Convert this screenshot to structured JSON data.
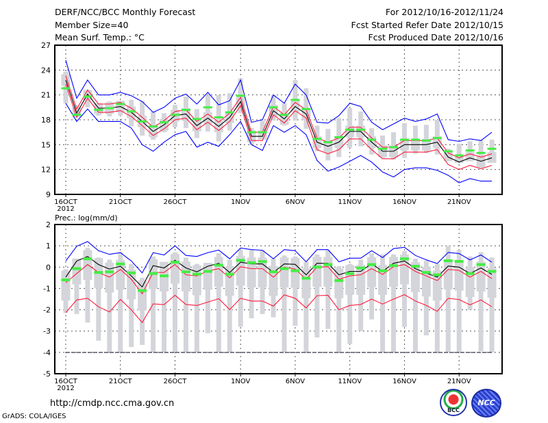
{
  "header": {
    "title": "DERF/NCC/BCC Monthly Forecast",
    "member_size": "Member Size=40",
    "variable": "Mean Surf. Temp.: °C",
    "period": "For 2012/10/16-2012/11/24",
    "started": "Fcst Started Refer Date 2012/10/15",
    "produced": "Fcst Produced Date 2012/10/16"
  },
  "footer": {
    "url": "http://cmdp.ncc.cma.gov.cn",
    "credit": "GrADS: COLA/IGES",
    "logo_left": "BCC",
    "logo_right": "NCC"
  },
  "colors": {
    "mean": "#000000",
    "ci": "#ff1a3c",
    "envelope": "#0000ff",
    "obs": "#44ee44",
    "spread": "#d4d5da",
    "grid": "#555555"
  },
  "chart_data": [
    {
      "type": "line",
      "title": "Mean Surf. Temp.: °C",
      "xlabel": "",
      "ylabel": "",
      "ylim": [
        9,
        27
      ],
      "yticks": [
        9,
        12,
        15,
        18,
        21,
        24,
        27
      ],
      "grid": true,
      "x_tick_labels": [
        {
          "day": 0,
          "label": "16OCT",
          "sub": "2012"
        },
        {
          "day": 5,
          "label": "21OCT"
        },
        {
          "day": 10,
          "label": "26OCT"
        },
        {
          "day": 16,
          "label": "1NOV"
        },
        {
          "day": 21,
          "label": "6NOV"
        },
        {
          "day": 26,
          "label": "11NOV"
        },
        {
          "day": 31,
          "label": "16NOV"
        },
        {
          "day": 36,
          "label": "21NOV"
        }
      ],
      "days": 40,
      "box_offsets": [
        -0.7,
        0.7
      ],
      "series": [
        {
          "name": "ensemble mean",
          "values": [
            22.8,
            18.8,
            21.1,
            19.4,
            19.4,
            19.6,
            18.9,
            17.8,
            16.6,
            17.4,
            18.5,
            18.7,
            17.3,
            18.2,
            17.2,
            18.3,
            20.2,
            16.0,
            16.0,
            19.1,
            18.1,
            19.6,
            18.7,
            15.3,
            14.8,
            15.3,
            16.6,
            16.6,
            15.3,
            14.2,
            14.2,
            15.0,
            15.0,
            15.0,
            15.3,
            13.5,
            12.9,
            13.4,
            13.0,
            13.4
          ]
        },
        {
          "name": "upper confidence",
          "values": [
            23.3,
            19.3,
            21.6,
            19.9,
            19.9,
            20.1,
            19.4,
            18.3,
            17.1,
            17.9,
            19.0,
            19.2,
            17.8,
            18.7,
            17.7,
            18.8,
            20.7,
            16.5,
            16.5,
            19.6,
            18.6,
            20.1,
            19.2,
            15.8,
            15.3,
            15.8,
            17.1,
            17.1,
            15.8,
            14.7,
            14.7,
            15.5,
            15.5,
            15.5,
            15.8,
            14.0,
            13.4,
            13.9,
            13.5,
            13.9
          ]
        },
        {
          "name": "lower confidence",
          "values": [
            22.3,
            18.3,
            20.6,
            18.9,
            18.9,
            19.1,
            18.4,
            17.3,
            16.1,
            16.9,
            18.0,
            18.2,
            16.8,
            17.7,
            16.7,
            17.8,
            19.7,
            15.5,
            15.5,
            18.6,
            17.6,
            19.1,
            18.2,
            14.4,
            13.9,
            14.4,
            15.7,
            15.7,
            14.4,
            13.3,
            13.3,
            14.1,
            14.1,
            14.1,
            14.4,
            12.6,
            12.0,
            12.5,
            12.1,
            12.5
          ]
        },
        {
          "name": "ensemble max",
          "values": [
            25.2,
            20.6,
            22.8,
            21.0,
            21.0,
            21.3,
            20.9,
            20.2,
            18.9,
            19.5,
            20.6,
            21.1,
            19.9,
            21.3,
            19.8,
            20.3,
            22.8,
            17.7,
            18.0,
            21.0,
            20.0,
            22.3,
            21.0,
            17.7,
            17.6,
            18.5,
            20.0,
            19.6,
            17.7,
            16.8,
            17.5,
            18.2,
            17.8,
            18.1,
            18.7,
            15.6,
            15.4,
            15.7,
            15.5,
            16.5
          ]
        },
        {
          "name": "ensemble min",
          "values": [
            20.0,
            17.8,
            19.3,
            17.8,
            17.8,
            17.8,
            17.0,
            15.0,
            14.2,
            15.3,
            16.2,
            16.6,
            14.7,
            15.3,
            14.8,
            16.2,
            17.8,
            15.0,
            14.3,
            17.3,
            16.5,
            17.3,
            16.2,
            13.1,
            11.8,
            12.3,
            13.0,
            13.7,
            12.9,
            11.7,
            11.1,
            12.0,
            12.2,
            12.2,
            11.9,
            11.3,
            10.4,
            10.9,
            10.6,
            10.6
          ]
        },
        {
          "name": "observed",
          "values": [
            21.8,
            18.6,
            20.8,
            19.2,
            19.4,
            19.9,
            19.0,
            17.8,
            17.2,
            17.7,
            18.6,
            19.2,
            18.1,
            19.5,
            18.3,
            18.9,
            20.9,
            16.5,
            16.5,
            19.5,
            18.6,
            20.4,
            19.3,
            15.7,
            15.3,
            15.9,
            16.8,
            16.8,
            15.6,
            14.5,
            14.7,
            15.6,
            15.6,
            15.5,
            15.8,
            14.2,
            13.7,
            14.3,
            14.0,
            14.5
          ]
        },
        {
          "name": "spread high",
          "values": [
            23.8,
            19.8,
            21.6,
            20.0,
            20.2,
            20.3,
            20.4,
            20.3,
            19.0,
            18.8,
            19.8,
            20.8,
            19.3,
            21.0,
            21.0,
            21.2,
            23.0,
            17.0,
            17.9,
            21.0,
            20.0,
            22.8,
            21.8,
            17.3,
            16.9,
            18.2,
            19.4,
            19.0,
            17.0,
            16.1,
            16.5,
            17.6,
            17.3,
            17.4,
            18.0,
            14.5,
            15.1,
            15.4,
            15.6,
            15.6
          ]
        },
        {
          "name": "spread low",
          "values": [
            20.0,
            18.3,
            19.5,
            18.5,
            18.4,
            18.5,
            17.2,
            16.1,
            15.6,
            16.5,
            17.1,
            17.0,
            15.8,
            16.6,
            15.4,
            16.7,
            18.8,
            15.0,
            15.6,
            17.9,
            17.3,
            17.9,
            16.9,
            14.2,
            13.1,
            13.5,
            14.6,
            14.8,
            13.8,
            13.4,
            13.2,
            13.4,
            13.9,
            14.0,
            13.8,
            13.0,
            12.8,
            13.0,
            12.2,
            12.8
          ]
        }
      ]
    },
    {
      "type": "line",
      "title": "Prec.: log(mm/d)",
      "xlabel": "",
      "ylabel": "",
      "ylim": [
        -5,
        2
      ],
      "yticks": [
        -5,
        -4,
        -3,
        -2,
        -1,
        0,
        1,
        2
      ],
      "grid": true,
      "x_tick_labels": [
        {
          "day": 0,
          "label": "16OCT",
          "sub": "2012"
        },
        {
          "day": 5,
          "label": "21OCT"
        },
        {
          "day": 10,
          "label": "26OCT"
        },
        {
          "day": 16,
          "label": "1NOV"
        },
        {
          "day": 21,
          "label": "6NOV"
        },
        {
          "day": 26,
          "label": "11NOV"
        },
        {
          "day": 31,
          "label": "16NOV"
        },
        {
          "day": 36,
          "label": "21NOV"
        }
      ],
      "days": 40,
      "box_offsets": [
        -1.1,
        0.3
      ],
      "series": [
        {
          "name": "ensemble mean",
          "values": [
            -0.47,
            0.29,
            0.5,
            0.12,
            -0.09,
            0.04,
            -0.41,
            -0.93,
            0.07,
            -0.04,
            0.32,
            -0.04,
            -0.22,
            0.04,
            0.18,
            -0.25,
            0.23,
            0.15,
            0.15,
            -0.25,
            0.15,
            0.13,
            -0.36,
            0.18,
            0.18,
            -0.36,
            -0.2,
            -0.2,
            0.16,
            -0.2,
            0.18,
            0.29,
            -0.07,
            -0.28,
            -0.47,
            0.05,
            0,
            -0.3,
            -0.04,
            -0.34
          ]
        },
        {
          "name": "upper confidence",
          "values": [
            -0.73,
            -0.3,
            0.12,
            -0.25,
            -0.47,
            -0.11,
            -0.57,
            -1.25,
            -0.25,
            -0.25,
            0.12,
            -0.36,
            -0.41,
            -0.18,
            -0.07,
            -0.5,
            0.02,
            -0.07,
            -0.07,
            -0.47,
            0,
            -0.09,
            -0.57,
            0,
            0.02,
            -0.57,
            -0.41,
            -0.36,
            -0.07,
            -0.34,
            0.02,
            0.12,
            -0.2,
            -0.41,
            -0.63,
            -0.11,
            -0.15,
            -0.47,
            -0.2,
            -0.54
          ]
        },
        {
          "name": "lower confidence",
          "values": [
            -2.13,
            -1.54,
            -1.46,
            -1.86,
            -2.1,
            -1.52,
            -2.0,
            -2.6,
            -1.72,
            -1.76,
            -1.32,
            -1.75,
            -1.8,
            -1.64,
            -1.48,
            -1.99,
            -1.46,
            -1.59,
            -1.59,
            -1.83,
            -1.3,
            -1.46,
            -1.91,
            -1.34,
            -1.32,
            -2.0,
            -1.8,
            -1.75,
            -1.5,
            -1.73,
            -1.5,
            -1.29,
            -1.59,
            -1.8,
            -2.07,
            -1.46,
            -1.52,
            -1.77,
            -1.54,
            -1.86
          ]
        },
        {
          "name": "ensemble max",
          "values": [
            0.29,
            0.98,
            1.2,
            0.77,
            0.6,
            0.68,
            0.29,
            -0.27,
            0.68,
            0.57,
            1.0,
            0.55,
            0.5,
            0.68,
            0.8,
            0.39,
            0.9,
            0.82,
            0.79,
            0.39,
            0.82,
            0.77,
            0.25,
            0.82,
            0.82,
            0.25,
            0.42,
            0.42,
            0.77,
            0.45,
            0.87,
            0.93,
            0.55,
            0.34,
            0.17,
            0.69,
            0.64,
            0.34,
            0.57,
            0.23
          ]
        },
        {
          "name": "ensemble min",
          "values": [
            -4,
            -4,
            -4,
            -4,
            -4,
            -4,
            -4,
            -4,
            -4,
            -4,
            -4,
            -4,
            -4,
            -4,
            -4,
            -4,
            -4,
            -4,
            -4,
            -4,
            -4,
            -4,
            -4,
            -4,
            -4,
            -4,
            -4,
            -4,
            -4,
            -4,
            -4,
            -4,
            -4,
            -4,
            -4,
            -4,
            -4,
            -4,
            -4,
            -4
          ]
        },
        {
          "name": "observed",
          "values": [
            -0.6,
            -0.07,
            0.39,
            -0.25,
            -0.22,
            0.15,
            -0.27,
            -1.1,
            -0.3,
            -0.41,
            0.23,
            -0.22,
            -0.33,
            -0.2,
            0.09,
            -0.33,
            0.32,
            0.21,
            0.26,
            -0.22,
            -0.07,
            -0.17,
            -0.52,
            0,
            0.12,
            -0.63,
            -0.3,
            -0.04,
            0.12,
            -0.17,
            0.07,
            0.39,
            0.04,
            -0.25,
            -0.36,
            0.3,
            0.27,
            -0.3,
            0.12,
            -0.2
          ]
        },
        {
          "name": "spread high",
          "values": [
            -0.1,
            0.4,
            0.9,
            0.45,
            0.35,
            0.7,
            0.15,
            -0.5,
            0.5,
            0.25,
            0.7,
            0.45,
            0.15,
            0.2,
            0.65,
            0.35,
            0.8,
            0.8,
            0.8,
            0.4,
            0.55,
            0.5,
            0.25,
            0.6,
            0.8,
            0.05,
            0.15,
            0.35,
            0.65,
            0.6,
            0.6,
            0.75,
            0.4,
            0.3,
            0.15,
            1.0,
            0.8,
            0.5,
            0.7,
            0.45
          ]
        },
        {
          "name": "spread low",
          "values": [
            -2.15,
            -2.2,
            -2.6,
            -3.45,
            -4,
            -4,
            -3.75,
            -3.65,
            -4,
            -4,
            -4,
            -4,
            -4,
            -3.1,
            -4,
            -4,
            -2.8,
            -2.4,
            -2.2,
            -2.35,
            -4,
            -2.75,
            -4,
            -3.3,
            -2.9,
            -4,
            -3.6,
            -3.0,
            -2.45,
            -4,
            -4,
            -2.8,
            -4,
            -3.2,
            -4,
            -4,
            -4,
            -2,
            -3.95,
            -4
          ]
        }
      ]
    }
  ]
}
